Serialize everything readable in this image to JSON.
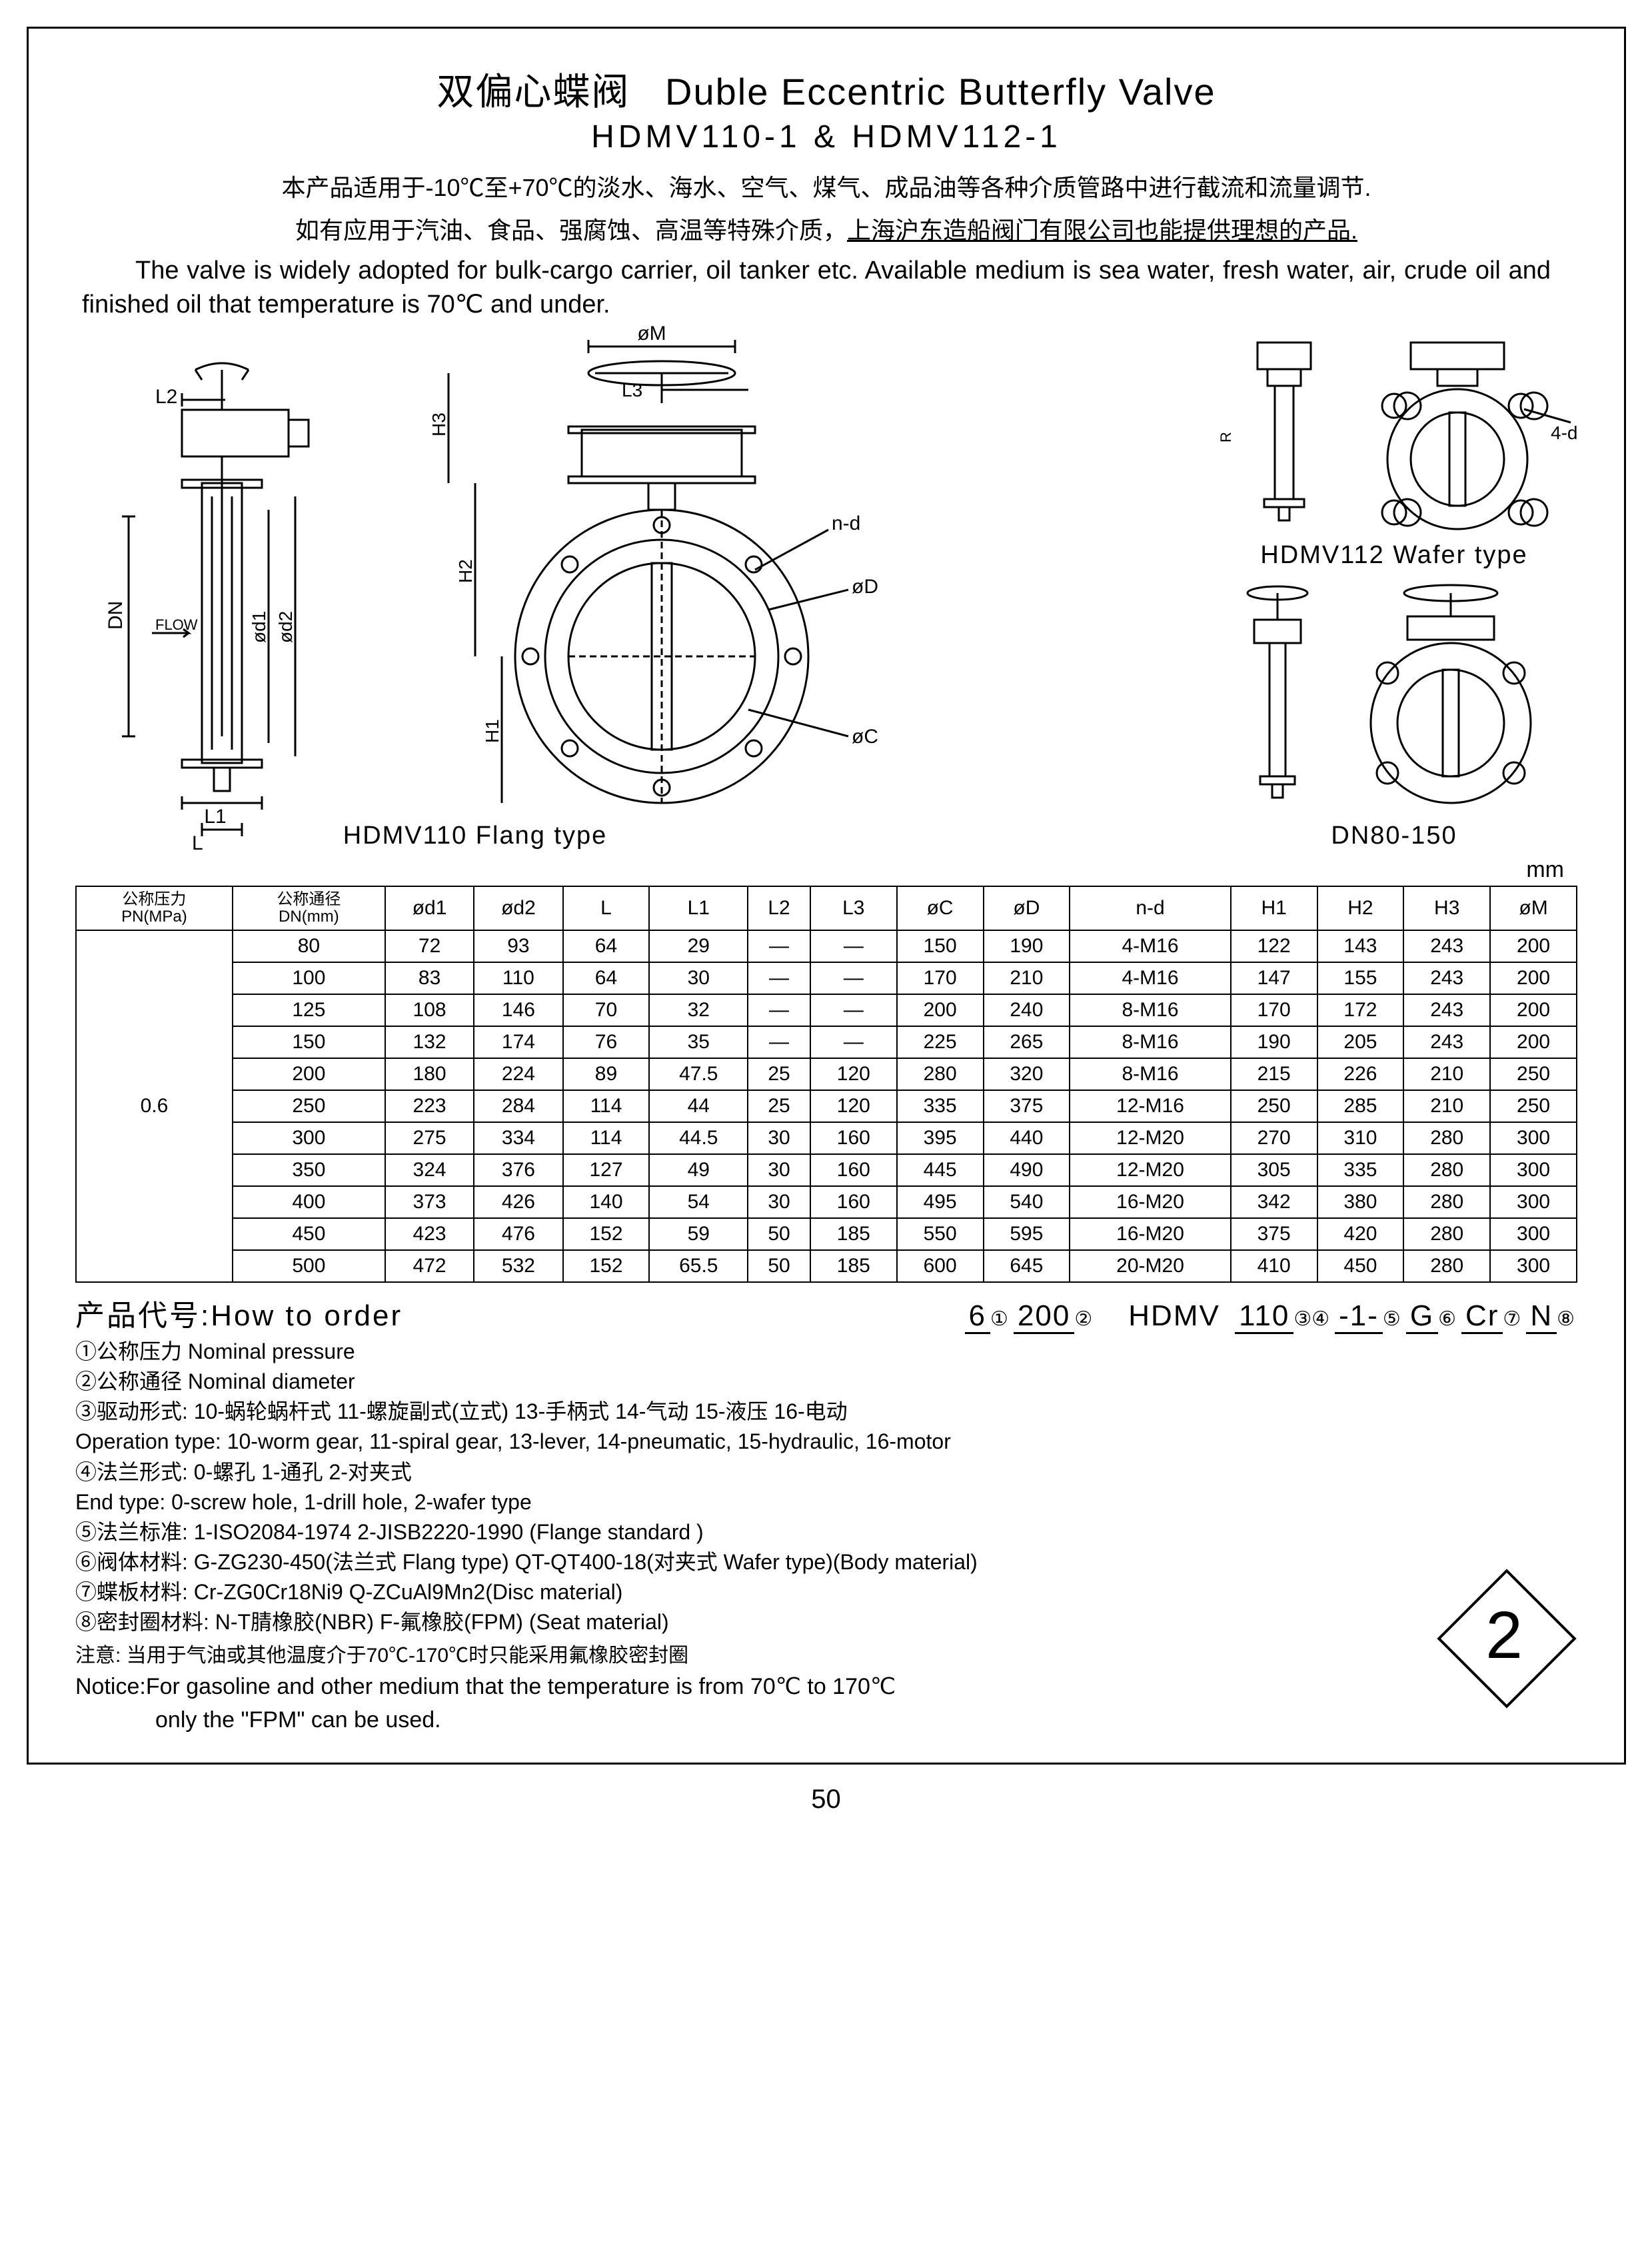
{
  "title_cn": "双偏心蝶阀",
  "title_en": "Duble Eccentric Butterfly Valve",
  "model_line": "HDMV110-1  &  HDMV112-1",
  "desc_cn_1": "本产品适用于-10℃至+70℃的淡水、海水、空气、煤气、成品油等各种介质管路中进行截流和流量调节.",
  "desc_cn_2_a": "如有应用于汽油、食品、强腐蚀、高温等特殊介质，",
  "desc_cn_2_u": "上海沪东造船阀门有限公司也能提供理想的产品.",
  "desc_en": "The valve is widely adopted for bulk-cargo carrier, oil tanker etc. Available medium is sea water, fresh water, air, crude oil and finished oil that temperature is 70℃ and under.",
  "dwg": {
    "hdmv110_label": "HDMV110  Flang type",
    "hdmv112_label": "HDMV112  Wafer type",
    "dn_label": "DN80-150",
    "dim_labels": {
      "DN": "DN",
      "FLOW": "FLOW",
      "L": "L",
      "L1": "L1",
      "L2": "L2",
      "L3": "L3",
      "d1": "ød1",
      "d2": "ød2",
      "M": "øM",
      "D": "øD",
      "C": "øC",
      "nd": "n-d",
      "4d": "4-d",
      "H1": "H1",
      "H2": "H2",
      "H3": "H3"
    }
  },
  "mm": "mm",
  "table": {
    "headers_top": [
      "公称压力",
      "公称通径",
      "ød1",
      "ød2",
      "L",
      "L1",
      "L2",
      "L3",
      "øC",
      "øD",
      "n-d",
      "H1",
      "H2",
      "H3",
      "øM"
    ],
    "headers_bot": [
      "PN(MPa)",
      "DN(mm)"
    ],
    "pn": "0.6",
    "rows": [
      [
        "80",
        "72",
        "93",
        "64",
        "29",
        "—",
        "—",
        "150",
        "190",
        "4-M16",
        "122",
        "143",
        "243",
        "200"
      ],
      [
        "100",
        "83",
        "110",
        "64",
        "30",
        "—",
        "—",
        "170",
        "210",
        "4-M16",
        "147",
        "155",
        "243",
        "200"
      ],
      [
        "125",
        "108",
        "146",
        "70",
        "32",
        "—",
        "—",
        "200",
        "240",
        "8-M16",
        "170",
        "172",
        "243",
        "200"
      ],
      [
        "150",
        "132",
        "174",
        "76",
        "35",
        "—",
        "—",
        "225",
        "265",
        "8-M16",
        "190",
        "205",
        "243",
        "200"
      ],
      [
        "200",
        "180",
        "224",
        "89",
        "47.5",
        "25",
        "120",
        "280",
        "320",
        "8-M16",
        "215",
        "226",
        "210",
        "250"
      ],
      [
        "250",
        "223",
        "284",
        "114",
        "44",
        "25",
        "120",
        "335",
        "375",
        "12-M16",
        "250",
        "285",
        "210",
        "250"
      ],
      [
        "300",
        "275",
        "334",
        "114",
        "44.5",
        "30",
        "160",
        "395",
        "440",
        "12-M20",
        "270",
        "310",
        "280",
        "300"
      ],
      [
        "350",
        "324",
        "376",
        "127",
        "49",
        "30",
        "160",
        "445",
        "490",
        "12-M20",
        "305",
        "335",
        "280",
        "300"
      ],
      [
        "400",
        "373",
        "426",
        "140",
        "54",
        "30",
        "160",
        "495",
        "540",
        "16-M20",
        "342",
        "380",
        "280",
        "300"
      ],
      [
        "450",
        "423",
        "476",
        "152",
        "59",
        "50",
        "185",
        "550",
        "595",
        "16-M20",
        "375",
        "420",
        "280",
        "300"
      ],
      [
        "500",
        "472",
        "532",
        "152",
        "65.5",
        "50",
        "185",
        "600",
        "645",
        "20-M20",
        "410",
        "450",
        "280",
        "300"
      ]
    ]
  },
  "order": {
    "title_cn": "产品代号:",
    "title_en": "How  to  order",
    "code": {
      "p1": "6",
      "p2": "200",
      "gap": "  ",
      "p3": "HDMV",
      "p4": "110",
      "p5": "-1-",
      "p6": "G",
      "p7": "Cr",
      "p8": "N"
    },
    "idx": {
      "i1": "①",
      "i2": "②",
      "i3": "③",
      "i4": "④",
      "i5": "⑤",
      "i6": "⑥",
      "i7": "⑦",
      "i8": "⑧"
    },
    "l1": "①公称压力 Nominal pressure",
    "l2": "②公称通径 Nominal diameter",
    "l3": "③驱动形式: 10-蜗轮蜗杆式  11-螺旋副式(立式)  13-手柄式  14-气动  15-液压  16-电动",
    "l3e": "Operation type: 10-worm gear, 11-spiral gear, 13-lever, 14-pneumatic, 15-hydraulic, 16-motor",
    "l4": "④法兰形式: 0-螺孔  1-通孔  2-对夹式",
    "l4e": "End type: 0-screw hole, 1-drill hole, 2-wafer type",
    "l5": "⑤法兰标准: 1-ISO2084-1974  2-JISB2220-1990 (Flange standard )",
    "l6": "⑥阀体材料: G-ZG230-450(法兰式 Flang type)   QT-QT400-18(对夹式 Wafer type)(Body material)",
    "l7": "⑦蝶板材料: Cr-ZG0Cr18Ni9   Q-ZCuAl9Mn2(Disc material)",
    "l8": "⑧密封圈材料: N-T腈橡胶(NBR)  F-氟橡胶(FPM) (Seat material)",
    "notice_cn": "注意: 当用于气油或其他温度介于70℃-170℃时只能采用氟橡胶密封圈",
    "notice_en1": "Notice:For gasoline and other medium that the temperature is from 70℃ to 170℃",
    "notice_en2": "only the  \"FPM\" can be used."
  },
  "diamond": "2",
  "page_number": "50"
}
